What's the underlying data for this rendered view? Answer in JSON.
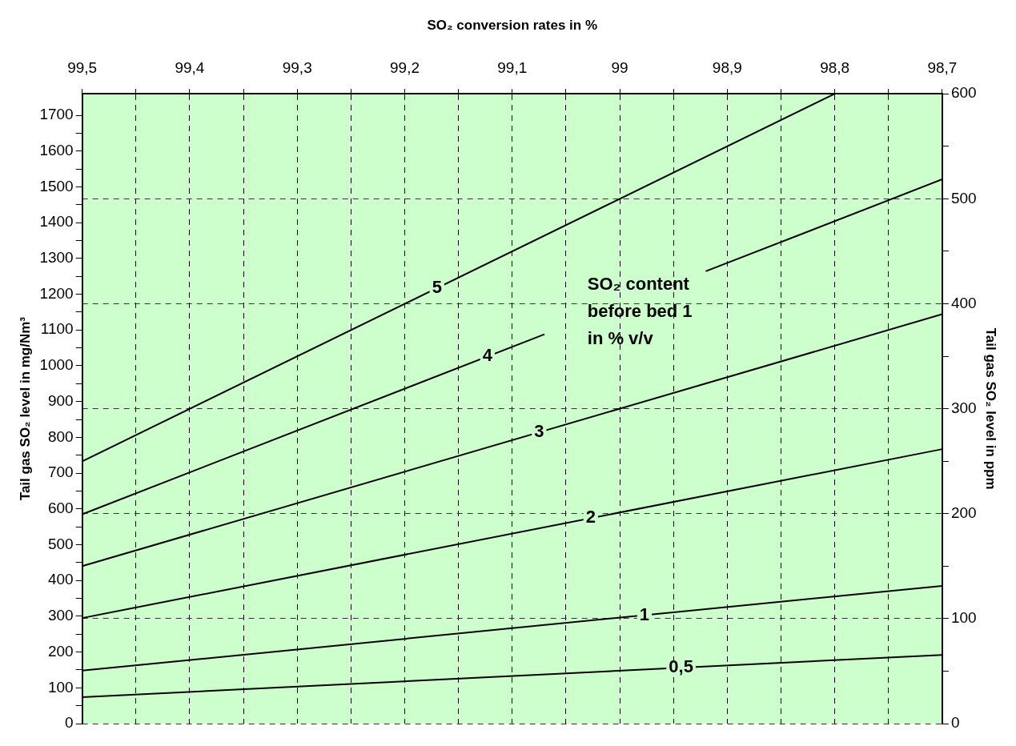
{
  "chart_data": {
    "type": "line",
    "xlabel": "SO₂ conversion rates in %",
    "ylabel": "Tail gas SO₂ level in mg/Nm³",
    "y2label": "Tail gas SO₂ level in ppm",
    "annotations": [
      "SO₂ content\nbefore bed 1\nin % v/v"
    ],
    "xlim": [
      99.5,
      98.7
    ],
    "xticks": [
      {
        "value": 99.5,
        "label": "99,5"
      },
      {
        "value": 99.45,
        "label": null
      },
      {
        "value": 99.4,
        "label": "99,4"
      },
      {
        "value": 99.35,
        "label": null
      },
      {
        "value": 99.3,
        "label": "99,3"
      },
      {
        "value": 99.25,
        "label": null
      },
      {
        "value": 99.2,
        "label": "99,2"
      },
      {
        "value": 99.15,
        "label": null
      },
      {
        "value": 99.1,
        "label": "99,1"
      },
      {
        "value": 99.05,
        "label": null
      },
      {
        "value": 99,
        "label": "99"
      },
      {
        "value": 98.95,
        "label": null
      },
      {
        "value": 98.9,
        "label": "98,9"
      },
      {
        "value": 98.85,
        "label": null
      },
      {
        "value": 98.8,
        "label": "98,8"
      },
      {
        "value": 98.75,
        "label": null
      },
      {
        "value": 98.7,
        "label": "98,7"
      }
    ],
    "ylim": [
      0,
      1760
    ],
    "yticks": [
      0,
      {
        "value": 50,
        "label": null
      },
      100,
      {
        "value": 150,
        "label": null
      },
      200,
      {
        "value": 250,
        "label": null
      },
      300,
      {
        "value": 350,
        "label": null
      },
      400,
      {
        "value": 450,
        "label": null
      },
      500,
      {
        "value": 550,
        "label": null
      },
      600,
      {
        "value": 650,
        "label": null
      },
      700,
      {
        "value": 750,
        "label": null
      },
      800,
      {
        "value": 850,
        "label": null
      },
      900,
      {
        "value": 950,
        "label": null
      },
      1000,
      {
        "value": 1050,
        "label": null
      },
      1100,
      {
        "value": 1150,
        "label": null
      },
      1200,
      {
        "value": 1250,
        "label": null
      },
      1300,
      {
        "value": 1350,
        "label": null
      },
      1400,
      {
        "value": 1450,
        "label": null
      },
      1500,
      {
        "value": 1550,
        "label": null
      },
      1600,
      {
        "value": 1650,
        "label": null
      },
      1700
    ],
    "y2lim": [
      0,
      600
    ],
    "y2ticks": [
      0,
      {
        "value": 50,
        "label": null
      },
      100,
      {
        "value": 150,
        "label": null
      },
      200,
      {
        "value": 250,
        "label": null
      },
      300,
      {
        "value": 350,
        "label": null
      },
      400,
      {
        "value": 450,
        "label": null
      },
      500,
      {
        "value": 550,
        "label": null
      },
      600
    ],
    "grid": true,
    "legend": false,
    "marker": "none",
    "line_style": "solid",
    "series": [
      {
        "name": "5",
        "color": "#000000",
        "x": [
          99.5,
          98.8
        ],
        "values": [
          733,
          1760
        ]
      },
      {
        "name": "4",
        "color": "#000000",
        "x": [
          99.5,
          99.07,
          99.0,
          98.92,
          98.7
        ],
        "values": [
          585,
          1088,
          null,
          1264,
          1521
        ]
      },
      {
        "name": "3",
        "color": "#000000",
        "x": [
          99.5,
          98.7
        ],
        "values": [
          440,
          1144
        ]
      },
      {
        "name": "2",
        "color": "#000000",
        "x": [
          99.5,
          98.7
        ],
        "values": [
          295,
          767
        ]
      },
      {
        "name": "1",
        "color": "#000000",
        "x": [
          99.5,
          98.7
        ],
        "values": [
          148,
          385
        ]
      },
      {
        "name": "0,5",
        "color": "#000000",
        "x": [
          99.5,
          98.7
        ],
        "values": [
          74,
          192
        ]
      }
    ]
  }
}
